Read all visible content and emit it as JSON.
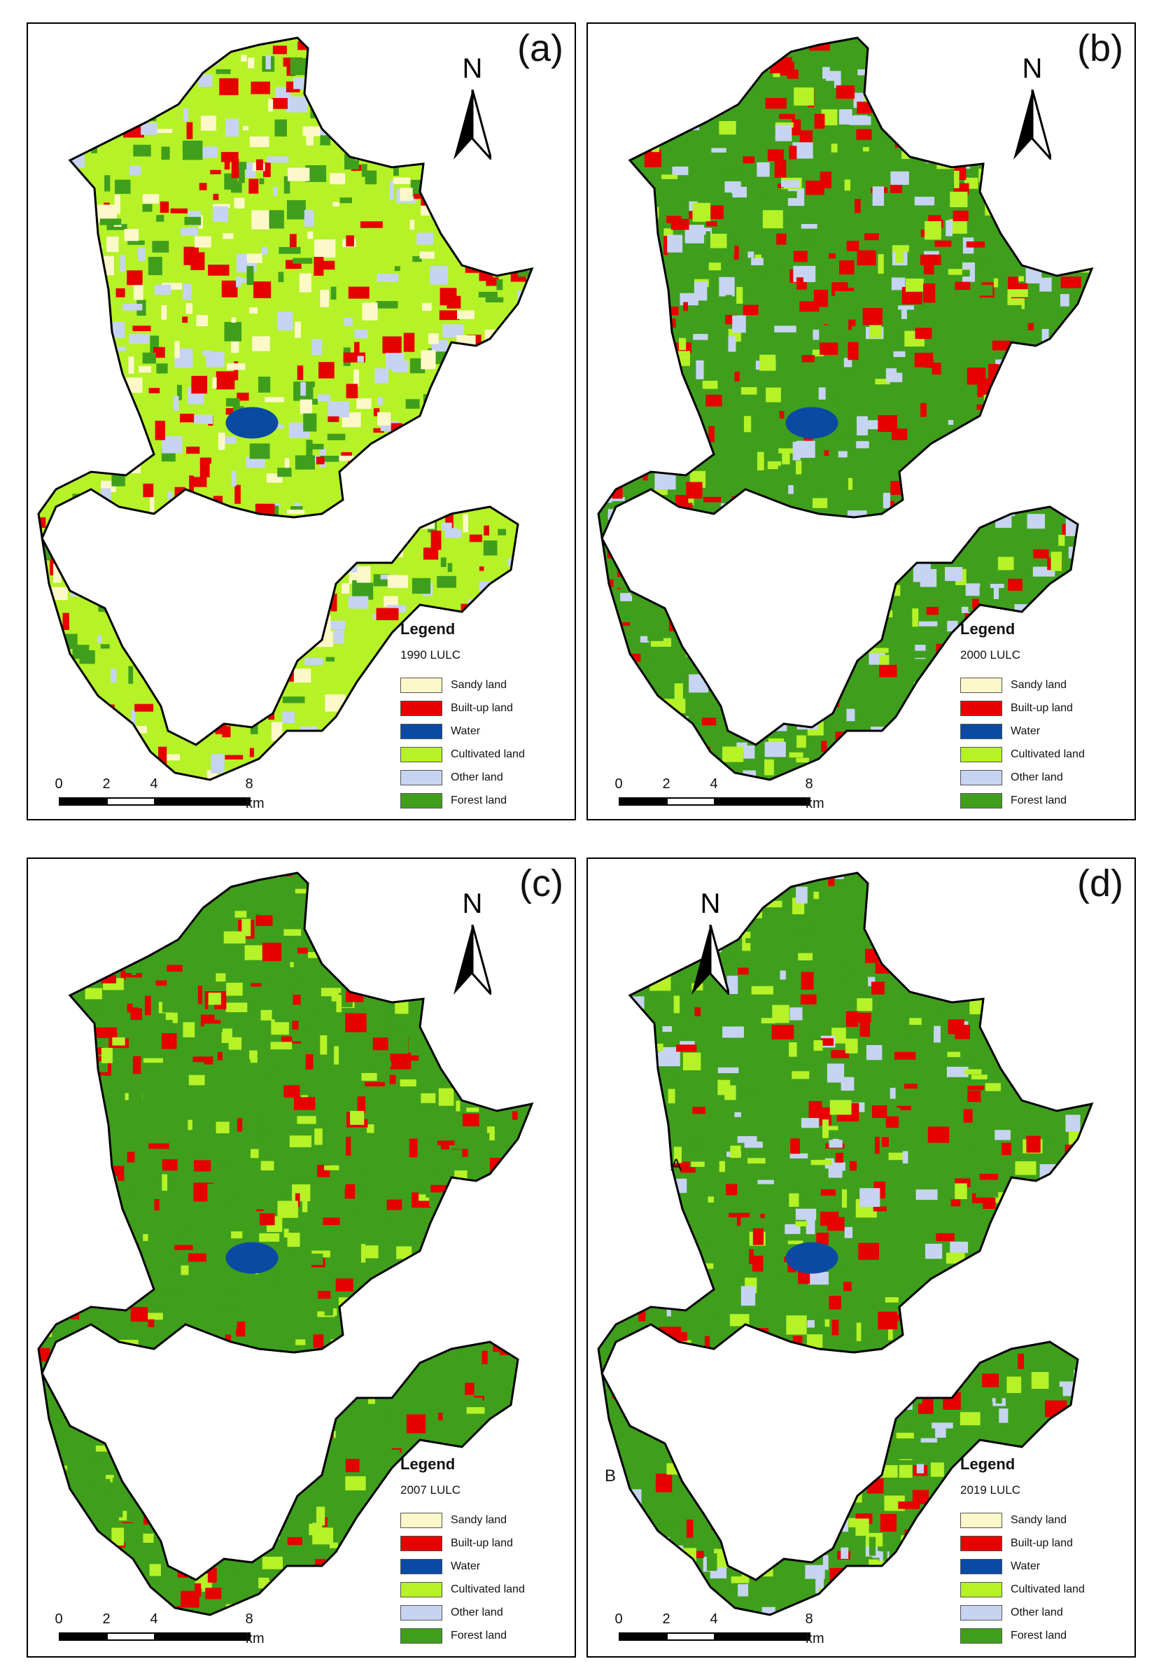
{
  "legend": {
    "title": "Legend",
    "classes": [
      {
        "label": "Sandy land",
        "color": "#fdf8c8"
      },
      {
        "label": "Built-up land",
        "color": "#e60000"
      },
      {
        "label": "Water",
        "color": "#0a4aa3"
      },
      {
        "label": "Cultivated land",
        "color": "#b5f227"
      },
      {
        "label": "Other land",
        "color": "#c6d4f2"
      },
      {
        "label": "Forest land",
        "color": "#3f9f1c"
      }
    ]
  },
  "north_arrow": {
    "letter": "N"
  },
  "scalebar": {
    "ticks": [
      "0",
      "2",
      "4",
      "8"
    ],
    "unit": "km"
  },
  "panels": [
    {
      "label": "(a)",
      "year_label": "1990 LULC"
    },
    {
      "label": "(b)",
      "year_label": "2000 LULC"
    },
    {
      "label": "(c)",
      "year_label": "2007 LULC"
    },
    {
      "label": "(d)",
      "year_label": "2019 LULC",
      "annotations": [
        "A",
        "B"
      ]
    }
  ]
}
